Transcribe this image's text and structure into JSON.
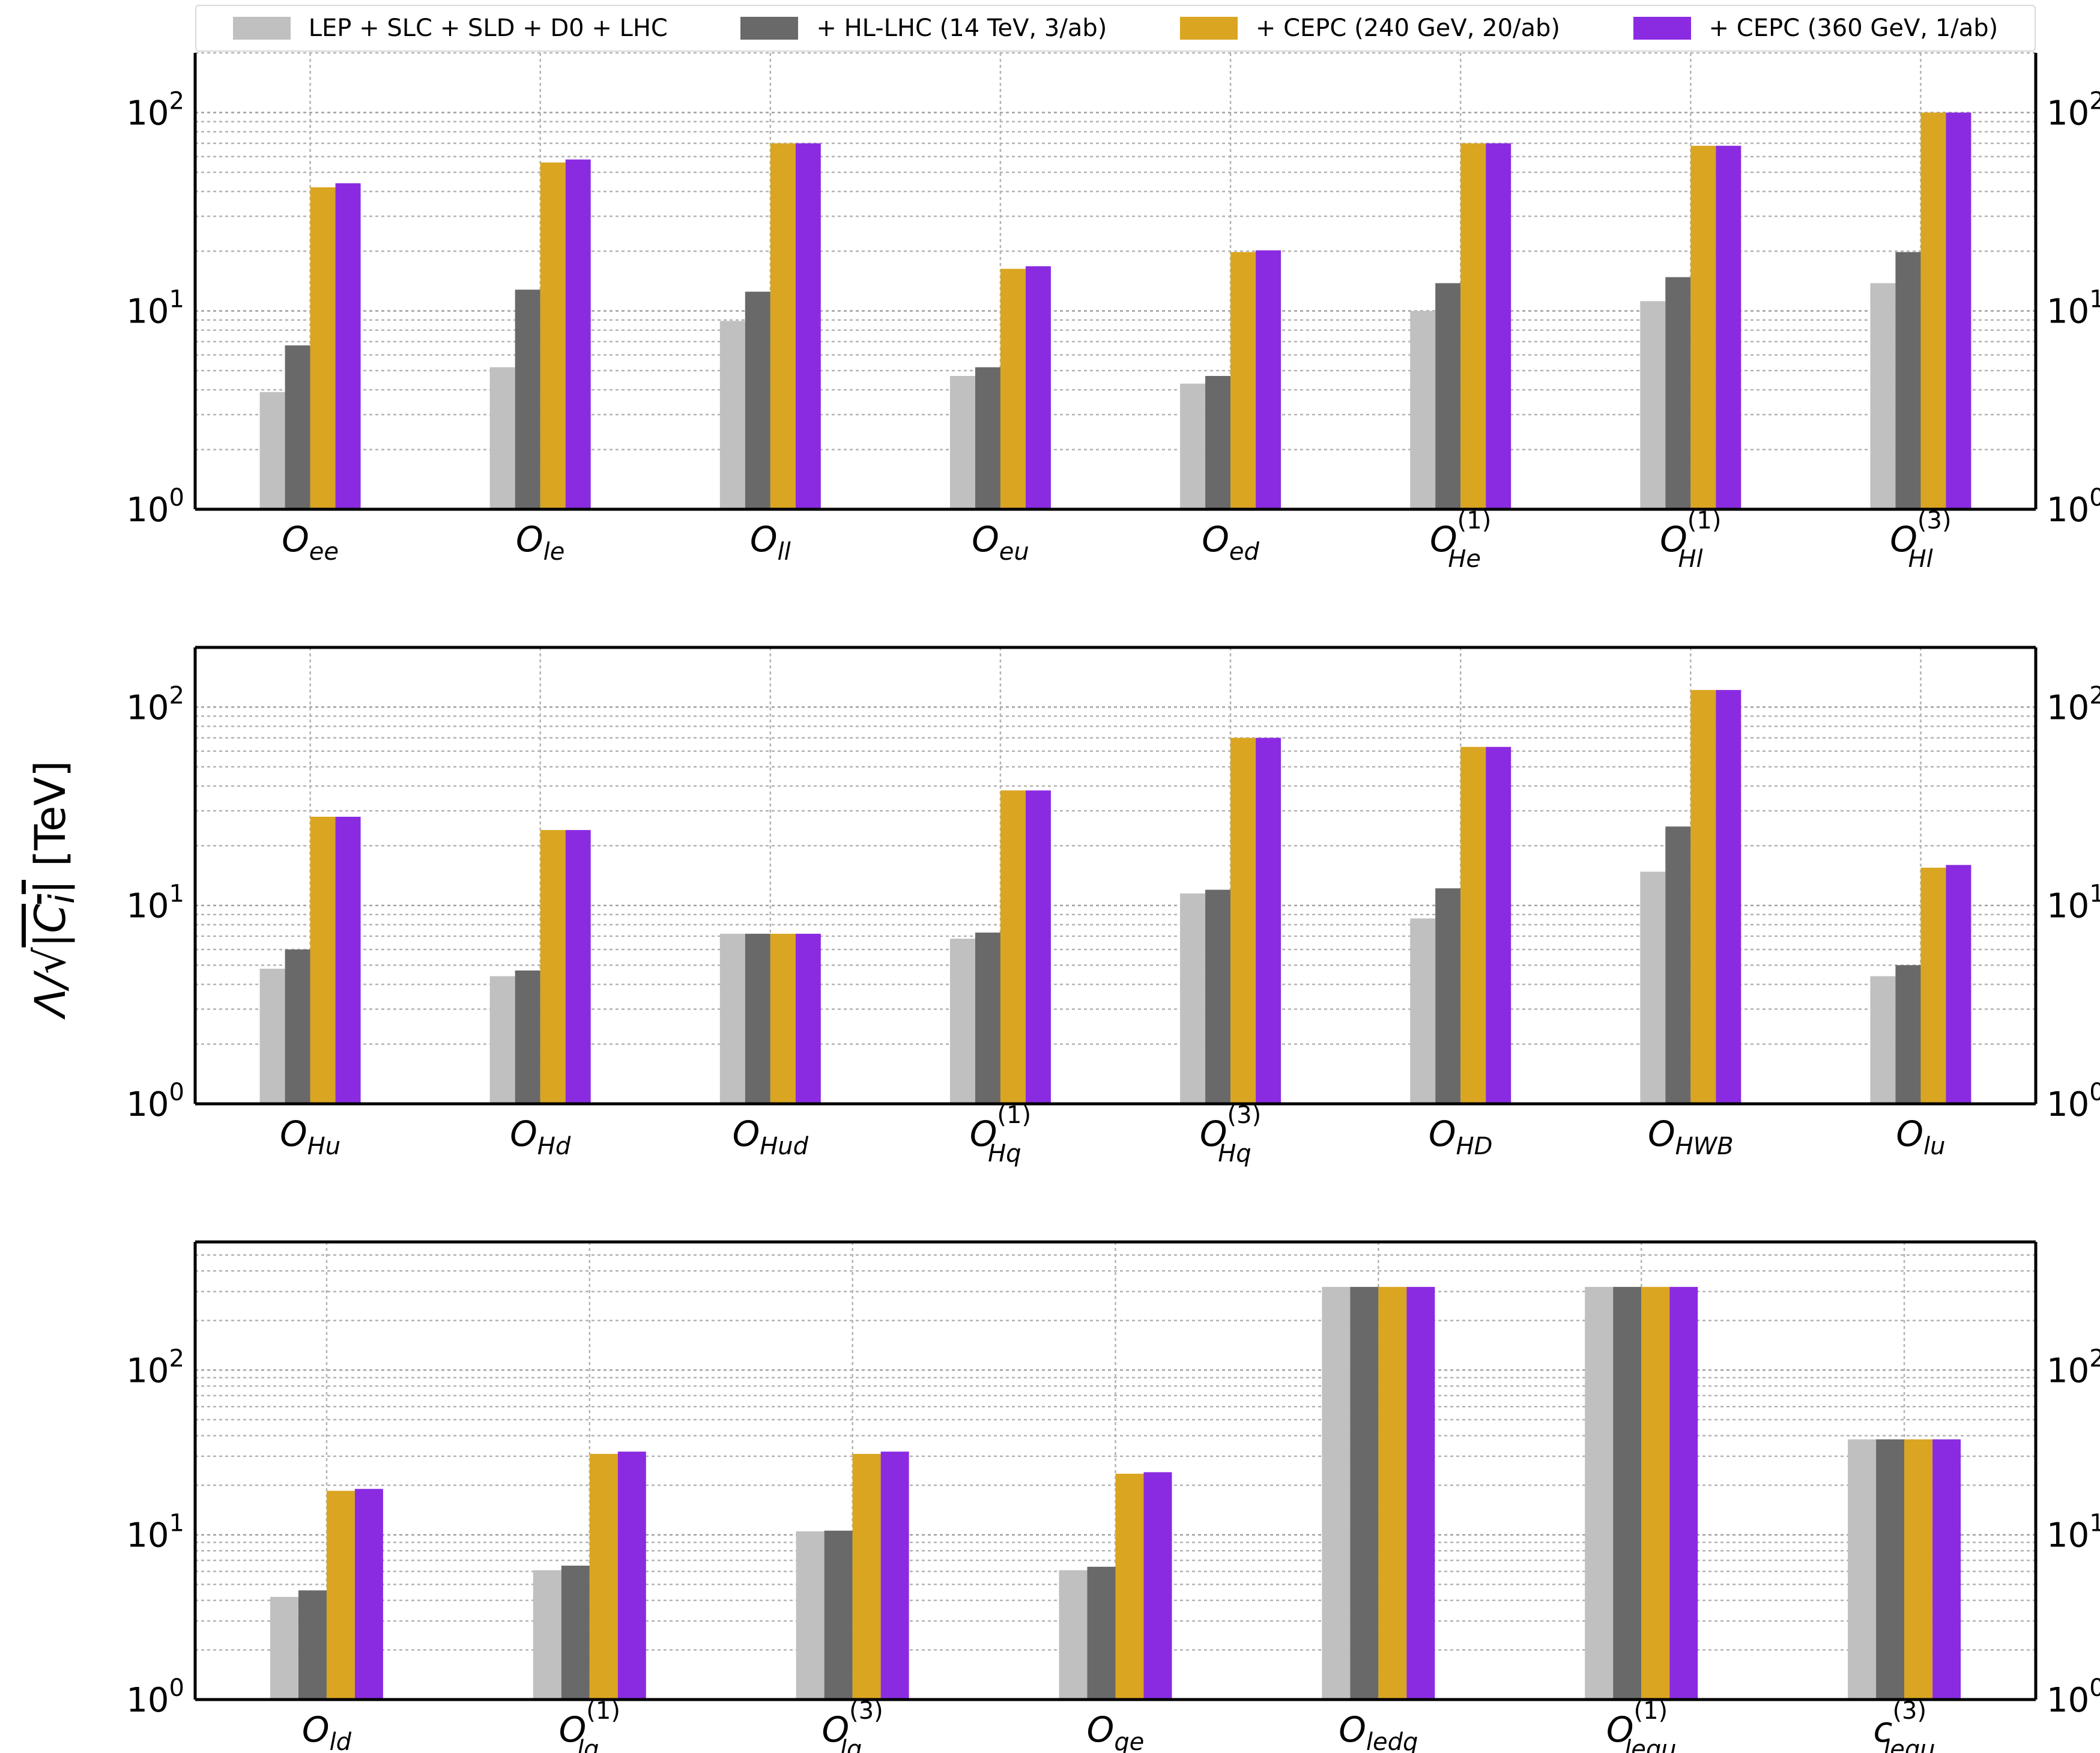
{
  "colors": {
    "s1": "#c0c0c0",
    "s2": "#696969",
    "s3": "#daa520",
    "s4": "#8a2be2"
  },
  "legend": [
    {
      "label": "LEP + SLC + SLD + D0 + LHC"
    },
    {
      "label": "+ HL-LHC (14 TeV, 3/ab)"
    },
    {
      "label": "+ CEPC (240 GeV, 20/ab)"
    },
    {
      "label": "+ CEPC (360 GeV, 1/ab)"
    }
  ],
  "ylabel": {
    "prefix": "Λ/√",
    "inner": "|C",
    "sub": "i",
    "close": "|",
    "unit": " [TeV]"
  },
  "chart_data": [
    {
      "type": "bar",
      "yscale": "log",
      "ylim": [
        1,
        200
      ],
      "grid": true,
      "legend": "top",
      "categories": [
        {
          "base": "O",
          "sub": "ee",
          "sup": ""
        },
        {
          "base": "O",
          "sub": "le",
          "sup": ""
        },
        {
          "base": "O",
          "sub": "ll",
          "sup": ""
        },
        {
          "base": "O",
          "sub": "eu",
          "sup": ""
        },
        {
          "base": "O",
          "sub": "ed",
          "sup": ""
        },
        {
          "base": "O",
          "sub": "He",
          "sup": "(1)"
        },
        {
          "base": "O",
          "sub": "Hl",
          "sup": "(1)"
        },
        {
          "base": "O",
          "sub": "Hl",
          "sup": "(3)"
        }
      ],
      "series": [
        {
          "values": [
            3.9,
            5.2,
            8.9,
            4.7,
            4.3,
            10.0,
            11.2,
            13.8
          ]
        },
        {
          "values": [
            6.7,
            12.8,
            12.5,
            5.2,
            4.7,
            13.8,
            14.8,
            19.8
          ]
        },
        {
          "values": [
            42.0,
            56.0,
            70.0,
            16.3,
            19.8,
            70.0,
            68.0,
            100.0
          ]
        },
        {
          "values": [
            44.0,
            58.0,
            70.0,
            16.8,
            20.2,
            70.0,
            68.0,
            100.0
          ]
        }
      ]
    },
    {
      "type": "bar",
      "yscale": "log",
      "ylim": [
        1,
        200
      ],
      "grid": true,
      "categories": [
        {
          "base": "O",
          "sub": "Hu",
          "sup": ""
        },
        {
          "base": "O",
          "sub": "Hd",
          "sup": ""
        },
        {
          "base": "O",
          "sub": "Hud",
          "sup": ""
        },
        {
          "base": "O",
          "sub": "Hq",
          "sup": "(1)"
        },
        {
          "base": "O",
          "sub": "Hq",
          "sup": "(3)"
        },
        {
          "base": "O",
          "sub": "HD",
          "sup": ""
        },
        {
          "base": "O",
          "sub": "HWB",
          "sup": ""
        },
        {
          "base": "O",
          "sub": "lu",
          "sup": ""
        }
      ],
      "series": [
        {
          "values": [
            4.8,
            4.4,
            7.2,
            6.8,
            11.5,
            8.6,
            14.8,
            4.4
          ]
        },
        {
          "values": [
            6.0,
            4.7,
            7.2,
            7.3,
            12.0,
            12.2,
            25.0,
            5.0
          ]
        },
        {
          "values": [
            28.0,
            24.0,
            7.2,
            38.0,
            70.0,
            63.0,
            122.0,
            15.5
          ]
        },
        {
          "values": [
            28.0,
            24.0,
            7.2,
            38.0,
            70.0,
            63.0,
            122.0,
            16.0
          ]
        }
      ]
    },
    {
      "type": "bar",
      "yscale": "log",
      "ylim": [
        1,
        600
      ],
      "grid": true,
      "categories": [
        {
          "base": "O",
          "sub": "ld",
          "sup": ""
        },
        {
          "base": "O",
          "sub": "lq",
          "sup": "(1)"
        },
        {
          "base": "O",
          "sub": "lq",
          "sup": "(3)"
        },
        {
          "base": "O",
          "sub": "qe",
          "sup": ""
        },
        {
          "base": "O",
          "sub": "ledq",
          "sup": ""
        },
        {
          "base": "O",
          "sub": "lequ",
          "sup": "(1)"
        },
        {
          "base": "c",
          "sub": "lequ",
          "sup": "(3)"
        }
      ],
      "series": [
        {
          "values": [
            4.2,
            6.1,
            10.5,
            6.1,
            320.0,
            320.0,
            38.0
          ]
        },
        {
          "values": [
            4.6,
            6.5,
            10.6,
            6.4,
            320.0,
            320.0,
            38.0
          ]
        },
        {
          "values": [
            18.5,
            31.0,
            31.0,
            23.5,
            320.0,
            320.0,
            38.0
          ]
        },
        {
          "values": [
            19.0,
            32.0,
            32.0,
            24.0,
            320.0,
            320.0,
            38.0
          ]
        }
      ]
    }
  ]
}
